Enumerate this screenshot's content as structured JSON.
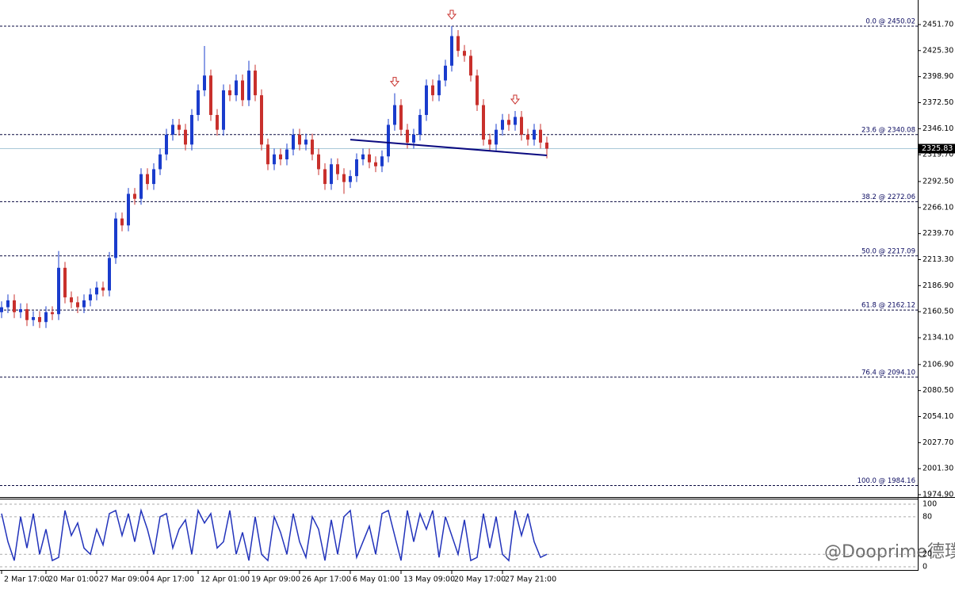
{
  "chart_data": {
    "type": "candlestick",
    "categories": [
      "2 Mar 17:00",
      null,
      null,
      null,
      null,
      null,
      null,
      "20 Mar 01:00",
      null,
      null,
      null,
      null,
      null,
      null,
      null,
      "27 Mar 09:00",
      null,
      null,
      null,
      null,
      null,
      null,
      null,
      "4 Apr 17:00",
      null,
      null,
      null,
      null,
      null,
      null,
      null,
      "12 Apr 01:00",
      null,
      null,
      null,
      null,
      null,
      null,
      null,
      "19 Apr 09:00",
      null,
      null,
      null,
      null,
      null,
      null,
      null,
      "26 Apr 17:00",
      null,
      null,
      null,
      null,
      null,
      null,
      null,
      "6 May 01:00",
      null,
      null,
      null,
      null,
      null,
      null,
      null,
      "13 May 09:00",
      null,
      null,
      null,
      null,
      null,
      null,
      null,
      "20 May 17:00",
      null,
      null,
      null,
      null,
      null,
      null,
      null,
      "27 May 21:00",
      null,
      null,
      null,
      null,
      null,
      null,
      null
    ],
    "open": [
      2160,
      2165,
      2172,
      2160,
      2163,
      2152,
      2155,
      2150,
      2160,
      2158,
      2205,
      2175,
      2170,
      2165,
      2172,
      2178,
      2185,
      2182,
      2215,
      2255,
      2248,
      2280,
      2275,
      2300,
      2290,
      2305,
      2320,
      2340,
      2350,
      2345,
      2330,
      2360,
      2385,
      2400,
      2360,
      2345,
      2385,
      2380,
      2395,
      2375,
      2405,
      2380,
      2330,
      2310,
      2320,
      2315,
      2325,
      2340,
      2330,
      2335,
      2320,
      2305,
      2290,
      2310,
      2300,
      2292,
      2298,
      2315,
      2320,
      2312,
      2308,
      2318,
      2350,
      2370,
      2345,
      2332,
      2340,
      2360,
      2390,
      2380,
      2395,
      2410,
      2440,
      2425,
      2420,
      2400,
      2370,
      2335,
      2330,
      2345,
      2355,
      2350,
      2358,
      2340,
      2335,
      2345,
      2332
    ],
    "high": [
      2171,
      2178,
      2178,
      2169,
      2169,
      2161,
      2161,
      2166,
      2166,
      2222,
      2211,
      2181,
      2176,
      2178,
      2184,
      2191,
      2191,
      2221,
      2261,
      2261,
      2286,
      2286,
      2306,
      2306,
      2311,
      2326,
      2346,
      2356,
      2356,
      2351,
      2366,
      2391,
      2430,
      2406,
      2366,
      2391,
      2391,
      2401,
      2401,
      2415,
      2411,
      2386,
      2336,
      2326,
      2326,
      2331,
      2346,
      2346,
      2341,
      2341,
      2326,
      2311,
      2316,
      2316,
      2306,
      2304,
      2321,
      2326,
      2326,
      2318,
      2324,
      2356,
      2382,
      2376,
      2351,
      2346,
      2366,
      2396,
      2396,
      2401,
      2416,
      2450.02,
      2446,
      2431,
      2426,
      2406,
      2376,
      2341,
      2351,
      2361,
      2361,
      2364,
      2364,
      2346,
      2351,
      2351,
      2338
    ],
    "low": [
      2154,
      2159,
      2154,
      2154,
      2146,
      2146,
      2144,
      2144,
      2152,
      2152,
      2169,
      2164,
      2159,
      2159,
      2166,
      2172,
      2176,
      2176,
      2209,
      2242,
      2242,
      2269,
      2269,
      2284,
      2284,
      2299,
      2314,
      2334,
      2339,
      2324,
      2324,
      2354,
      2379,
      2354,
      2339,
      2339,
      2374,
      2374,
      2369,
      2369,
      2374,
      2324,
      2304,
      2304,
      2309,
      2309,
      2319,
      2324,
      2324,
      2314,
      2299,
      2284,
      2284,
      2294,
      2280,
      2286,
      2292,
      2309,
      2306,
      2302,
      2302,
      2312,
      2344,
      2339,
      2326,
      2326,
      2334,
      2354,
      2374,
      2374,
      2389,
      2404,
      2419,
      2414,
      2394,
      2364,
      2329,
      2324,
      2324,
      2339,
      2344,
      2344,
      2334,
      2329,
      2329,
      2326,
      2316
    ],
    "close": [
      2165,
      2172,
      2160,
      2163,
      2152,
      2155,
      2150,
      2160,
      2158,
      2205,
      2175,
      2170,
      2165,
      2172,
      2178,
      2185,
      2182,
      2215,
      2255,
      2248,
      2280,
      2275,
      2300,
      2290,
      2305,
      2320,
      2340,
      2350,
      2345,
      2330,
      2360,
      2385,
      2400,
      2360,
      2345,
      2385,
      2380,
      2395,
      2375,
      2405,
      2380,
      2330,
      2310,
      2320,
      2315,
      2325,
      2340,
      2330,
      2335,
      2320,
      2305,
      2290,
      2310,
      2300,
      2292,
      2298,
      2315,
      2320,
      2312,
      2308,
      2318,
      2350,
      2370,
      2345,
      2332,
      2340,
      2360,
      2390,
      2380,
      2395,
      2410,
      2440,
      2425,
      2420,
      2400,
      2370,
      2335,
      2330,
      2345,
      2355,
      2350,
      2358,
      2340,
      2335,
      2345,
      2332,
      2325.83
    ],
    "up_color": "#1a3ccc",
    "down_color": "#c8302c",
    "ylim": [
      1972.5,
      2476.6
    ],
    "yticks": [
      {
        "value": 2451.7,
        "label": "2451.70"
      },
      {
        "value": 2425.3,
        "label": "2425.30"
      },
      {
        "value": 2398.9,
        "label": "2398.90"
      },
      {
        "value": 2372.5,
        "label": "2372.50"
      },
      {
        "value": 2346.1,
        "label": "2346.10"
      },
      {
        "value": 2319.7,
        "label": "2319.70"
      },
      {
        "value": 2292.5,
        "label": "2292.50"
      },
      {
        "value": 2266.1,
        "label": "2266.10"
      },
      {
        "value": 2239.7,
        "label": "2239.70"
      },
      {
        "value": 2213.3,
        "label": "2213.30"
      },
      {
        "value": 2186.9,
        "label": "2186.90"
      },
      {
        "value": 2160.5,
        "label": "2160.50"
      },
      {
        "value": 2134.1,
        "label": "2134.10"
      },
      {
        "value": 2106.9,
        "label": "2106.90"
      },
      {
        "value": 2080.5,
        "label": "2080.50"
      },
      {
        "value": 2054.1,
        "label": "2054.10"
      },
      {
        "value": 2027.7,
        "label": "2027.70"
      },
      {
        "value": 2001.3,
        "label": "2001.30"
      },
      {
        "value": 1974.9,
        "label": "1974.90"
      }
    ],
    "fib_levels": [
      {
        "value": 2450.02,
        "label": "0.0 @ 2450.02"
      },
      {
        "value": 2340.08,
        "label": "23.6 @ 2340.08"
      },
      {
        "value": 2272.06,
        "label": "38.2 @ 2272.06"
      },
      {
        "value": 2217.09,
        "label": "50.0 @ 2217.09"
      },
      {
        "value": 2162.12,
        "label": "61.8 @ 2162.12"
      },
      {
        "value": 2094.1,
        "label": "76.4 @ 2094.10"
      },
      {
        "value": 1984.16,
        "label": "100.0 @ 1984.16"
      }
    ],
    "current_price": {
      "value": 2325.83,
      "label": "2325.83"
    },
    "neckline": {
      "x": [
        55,
        86
      ],
      "values": [
        2335,
        2319
      ]
    },
    "signals": [
      62,
      71,
      81
    ],
    "stochastic": {
      "color": "#2233bb",
      "values": [
        85,
        40,
        10,
        80,
        30,
        85,
        20,
        60,
        10,
        15,
        90,
        50,
        70,
        30,
        20,
        60,
        35,
        85,
        90,
        50,
        85,
        40,
        90,
        60,
        20,
        80,
        85,
        30,
        60,
        75,
        20,
        90,
        70,
        85,
        30,
        40,
        90,
        20,
        55,
        10,
        80,
        20,
        10,
        80,
        55,
        20,
        85,
        40,
        15,
        80,
        60,
        10,
        75,
        20,
        80,
        90,
        15,
        40,
        65,
        20,
        85,
        90,
        50,
        10,
        90,
        40,
        85,
        60,
        90,
        15,
        80,
        50,
        20,
        75,
        10,
        15,
        85,
        30,
        80,
        20,
        10,
        90,
        50,
        85,
        40,
        15,
        20
      ],
      "ylim": [
        -3.8,
        108.9
      ],
      "yticks": [
        100,
        80,
        20,
        0
      ]
    },
    "watermark": "@Dooprime德璞资本一严"
  }
}
